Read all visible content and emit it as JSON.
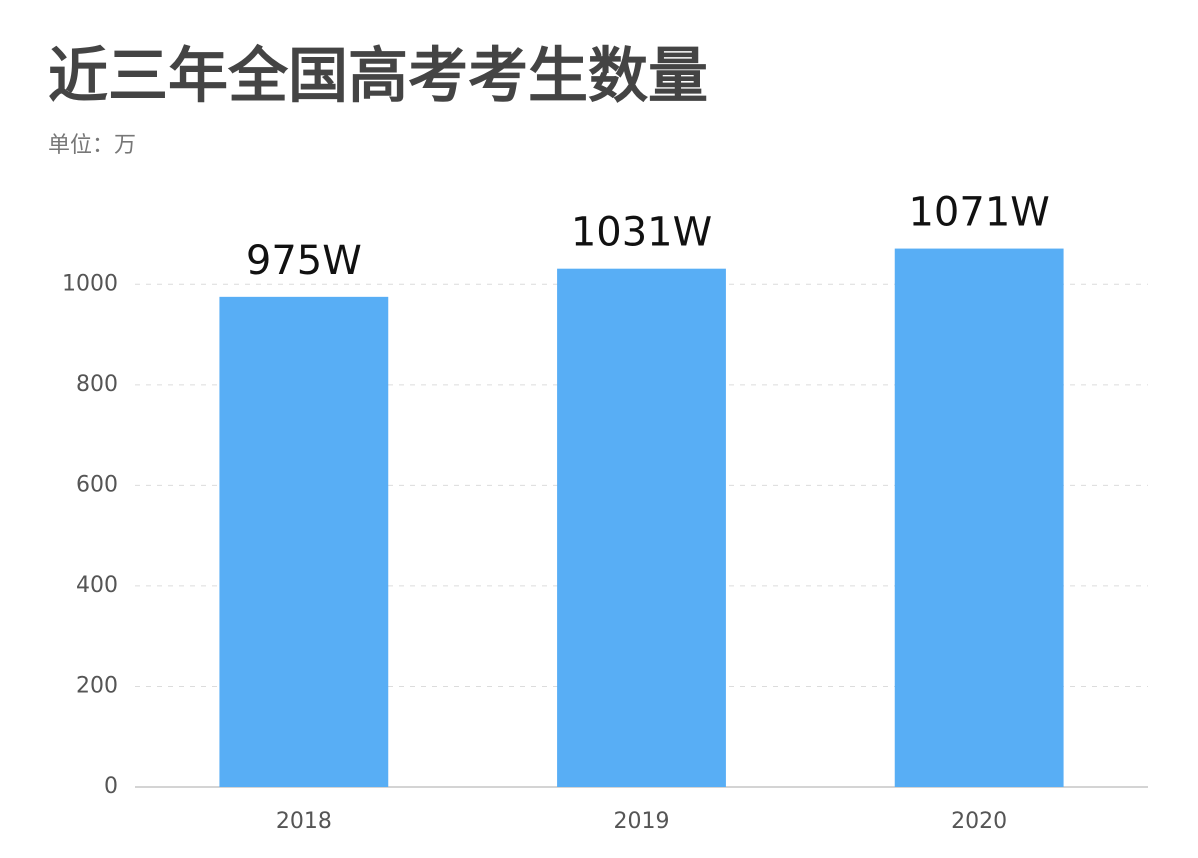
{
  "chart_data": {
    "type": "bar",
    "title": "近三年全国高考考生数量",
    "subtitle": "单位：万",
    "categories": [
      "2018",
      "2019",
      "2020"
    ],
    "values": [
      975,
      1031,
      1071
    ],
    "value_labels": [
      "975W",
      "1031W",
      "1071W"
    ],
    "color": "#58aef5",
    "ylim": [
      0,
      1100
    ],
    "yticks": [
      0,
      200,
      400,
      600,
      800,
      1000
    ],
    "grid": true
  }
}
